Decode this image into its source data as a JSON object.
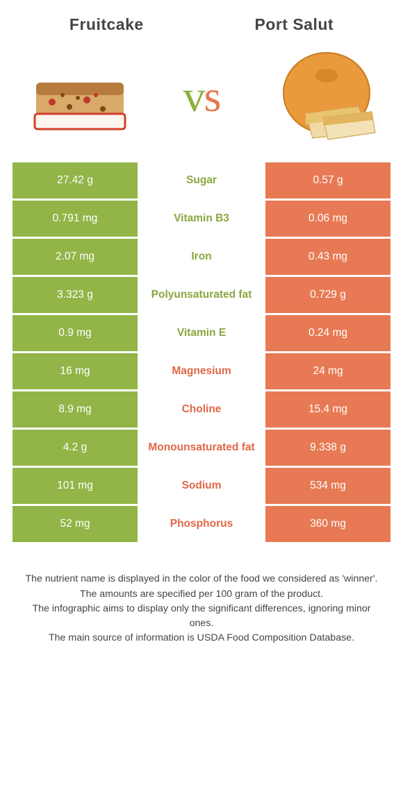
{
  "colors": {
    "green": "#93b447",
    "orange": "#e77a54",
    "green_text": "#8aa63f",
    "orange_text": "#e06846"
  },
  "left_food": {
    "title": "Fruitcake"
  },
  "right_food": {
    "title": "Port Salut"
  },
  "rows": [
    {
      "left": "27.42 g",
      "label": "Sugar",
      "right": "0.57 g",
      "winner": "left"
    },
    {
      "left": "0.791 mg",
      "label": "Vitamin B3",
      "right": "0.06 mg",
      "winner": "left"
    },
    {
      "left": "2.07 mg",
      "label": "Iron",
      "right": "0.43 mg",
      "winner": "left"
    },
    {
      "left": "3.323 g",
      "label": "Polyunsaturated fat",
      "right": "0.729 g",
      "winner": "left"
    },
    {
      "left": "0.9 mg",
      "label": "Vitamin E",
      "right": "0.24 mg",
      "winner": "left"
    },
    {
      "left": "16 mg",
      "label": "Magnesium",
      "right": "24 mg",
      "winner": "right"
    },
    {
      "left": "8.9 mg",
      "label": "Choline",
      "right": "15.4 mg",
      "winner": "right"
    },
    {
      "left": "4.2 g",
      "label": "Monounsaturated fat",
      "right": "9.338 g",
      "winner": "right"
    },
    {
      "left": "101 mg",
      "label": "Sodium",
      "right": "534 mg",
      "winner": "right"
    },
    {
      "left": "52 mg",
      "label": "Phosphorus",
      "right": "360 mg",
      "winner": "right"
    }
  ],
  "footer": [
    "The nutrient name is displayed in the color of the food we considered as 'winner'.",
    "The amounts are specified per 100 gram of the product.",
    "The infographic aims to display only the significant differences, ignoring minor ones.",
    "The main source of information is USDA Food Composition Database."
  ]
}
